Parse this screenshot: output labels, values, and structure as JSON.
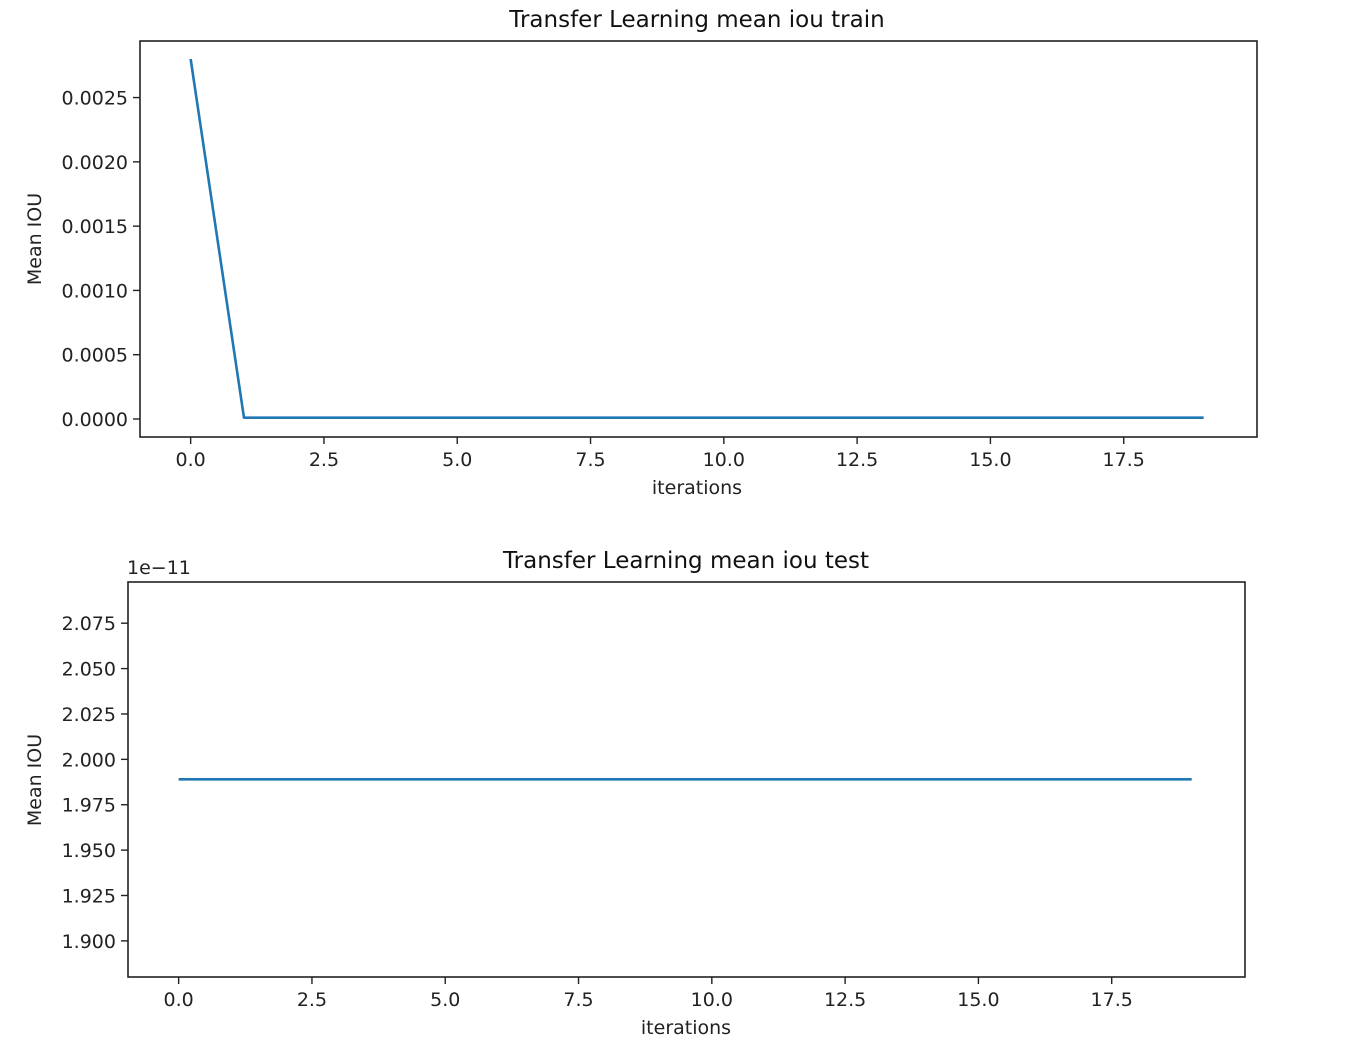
{
  "chart_data": [
    {
      "type": "line",
      "title": "Transfer Learning mean iou train",
      "xlabel": "iterations",
      "ylabel": "Mean IOU",
      "x": [
        0,
        1,
        2,
        3,
        4,
        5,
        6,
        7,
        8,
        9,
        10,
        11,
        12,
        13,
        14,
        15,
        16,
        17,
        18,
        19
      ],
      "series": [
        {
          "values": [
            0.0028,
            1e-05,
            1e-05,
            1e-05,
            1e-05,
            1e-05,
            1e-05,
            1e-05,
            1e-05,
            1e-05,
            1e-05,
            1e-05,
            1e-05,
            1e-05,
            1e-05,
            1e-05,
            1e-05,
            1e-05,
            1e-05,
            1e-05
          ]
        }
      ],
      "xlim": [
        -0.95,
        20.0
      ],
      "ylim": [
        -0.00014,
        0.00294
      ],
      "xticks": [
        0,
        2.5,
        5,
        7.5,
        10,
        12.5,
        15,
        17.5
      ],
      "xtick_labels": [
        "0.0",
        "2.5",
        "5.0",
        "7.5",
        "10.0",
        "12.5",
        "15.0",
        "17.5"
      ],
      "yticks": [
        0,
        0.0005,
        0.001,
        0.0015,
        0.002,
        0.0025
      ],
      "ytick_labels": [
        "0.0000",
        "0.0005",
        "0.0010",
        "0.0015",
        "0.0020",
        "0.0025"
      ],
      "grid": false,
      "color": "#1f77b4"
    },
    {
      "type": "line",
      "title": "Transfer Learning mean iou test",
      "xlabel": "iterations",
      "ylabel": "Mean IOU",
      "y_offset_label": "1e−11",
      "x": [
        0,
        1,
        2,
        3,
        4,
        5,
        6,
        7,
        8,
        9,
        10,
        11,
        12,
        13,
        14,
        15,
        16,
        17,
        18,
        19
      ],
      "series": [
        {
          "values": [
            1.989e-11,
            1.989e-11,
            1.989e-11,
            1.989e-11,
            1.989e-11,
            1.989e-11,
            1.989e-11,
            1.989e-11,
            1.989e-11,
            1.989e-11,
            1.989e-11,
            1.989e-11,
            1.989e-11,
            1.989e-11,
            1.989e-11,
            1.989e-11,
            1.989e-11,
            1.989e-11,
            1.989e-11,
            1.989e-11
          ]
        }
      ],
      "xlim": [
        -0.95,
        20.0
      ],
      "ylim": [
        1.8801e-11,
        2.0977e-11
      ],
      "xticks": [
        0,
        2.5,
        5,
        7.5,
        10,
        12.5,
        15,
        17.5
      ],
      "xtick_labels": [
        "0.0",
        "2.5",
        "5.0",
        "7.5",
        "10.0",
        "12.5",
        "15.0",
        "17.5"
      ],
      "yticks": [
        1.9e-11,
        1.925e-11,
        1.95e-11,
        1.975e-11,
        2e-11,
        2.025e-11,
        2.05e-11,
        2.075e-11
      ],
      "ytick_labels": [
        "1.900",
        "1.925",
        "1.950",
        "1.975",
        "2.000",
        "2.025",
        "2.050",
        "2.075"
      ],
      "grid": false,
      "color": "#1f77b4"
    }
  ]
}
